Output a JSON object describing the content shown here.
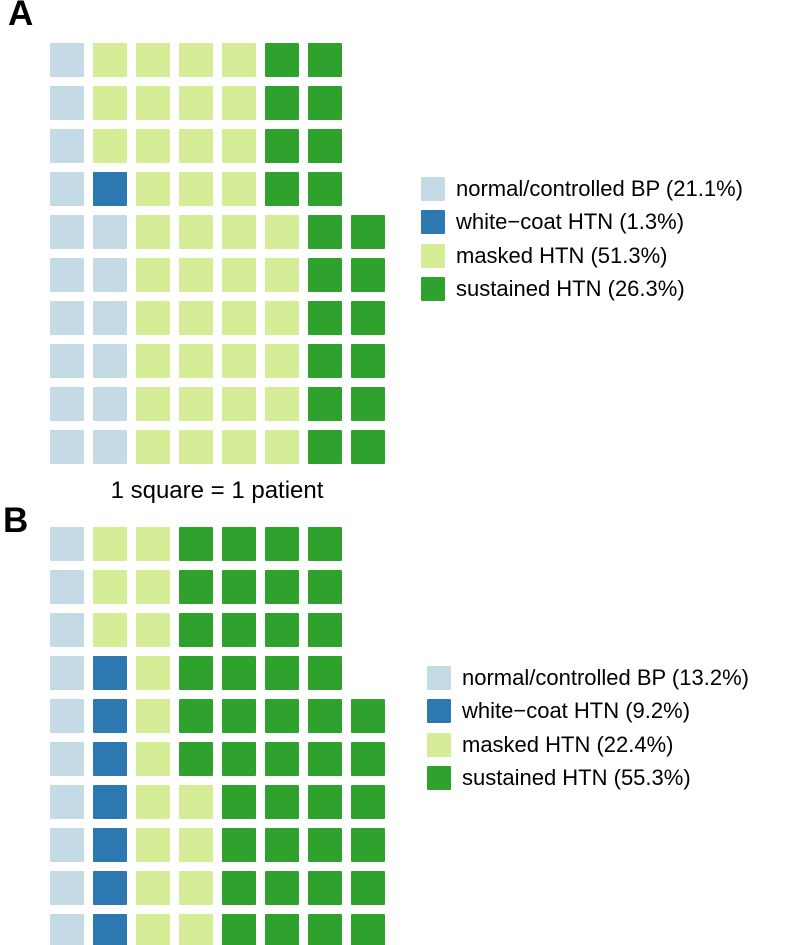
{
  "figure": {
    "caption": "1 square = 1 patient",
    "background": "#ffffff",
    "text_color": "#000000",
    "color_map": {
      "N": "#c4dbe6",
      "W": "#2e78b2",
      "M": "#d4ed96",
      "S": "#2ea22c"
    },
    "category_names": {
      "N": "normal-controlled-bp",
      "W": "white-coat-htn",
      "M": "masked-htn",
      "S": "sustained-htn"
    }
  },
  "chart_data": [
    {
      "type": "pie",
      "subtype": "waffle",
      "panel": "A",
      "unit_note": "1 square = 1 patient",
      "total_squares": 76,
      "categories": [
        "normal/controlled BP",
        "white−coat HTN",
        "masked HTN",
        "sustained HTN"
      ],
      "values_percent": [
        21.1,
        1.3,
        51.3,
        26.3
      ],
      "square_counts": [
        16,
        1,
        39,
        20
      ],
      "colors": [
        "#c4dbe6",
        "#2e78b2",
        "#d4ed96",
        "#2ea22c"
      ],
      "legend_labels": [
        "normal/controlled BP (21.1%)",
        "white−coat HTN (1.3%)",
        "masked HTN (51.3%)",
        "sustained HTN (26.3%)"
      ],
      "legend_position": "right",
      "grid_rows": [
        "NMMMMSS",
        "NMMMMSS",
        "NMMMMSS",
        "NWMMMSS",
        "NNMMMMSS",
        "NNMMMMSS",
        "NNMMMMSS",
        "NNMMMMSS",
        "NNMMMMSS",
        "NNMMMMSS"
      ]
    },
    {
      "type": "pie",
      "subtype": "waffle",
      "panel": "B",
      "unit_note": "1 square = 1 patient",
      "total_squares": 76,
      "categories": [
        "normal/controlled BP",
        "white−coat HTN",
        "masked HTN",
        "sustained HTN"
      ],
      "values_percent": [
        13.2,
        9.2,
        22.4,
        55.3
      ],
      "square_counts": [
        10,
        7,
        17,
        42
      ],
      "colors": [
        "#c4dbe6",
        "#2e78b2",
        "#d4ed96",
        "#2ea22c"
      ],
      "legend_labels": [
        "normal/controlled BP (13.2%)",
        "white−coat HTN (9.2%)",
        "masked HTN (22.4%)",
        "sustained HTN (55.3%)"
      ],
      "legend_position": "right",
      "grid_rows": [
        "NMMSSSS",
        "NMMSSSS",
        "NMMSSSS",
        "NWMSSSS",
        "NWMSSSSS",
        "NWMSSSSS",
        "NWMMSSSS",
        "NWMMSSSS",
        "NWMMSSSS",
        "NWMMSSSS"
      ]
    }
  ]
}
